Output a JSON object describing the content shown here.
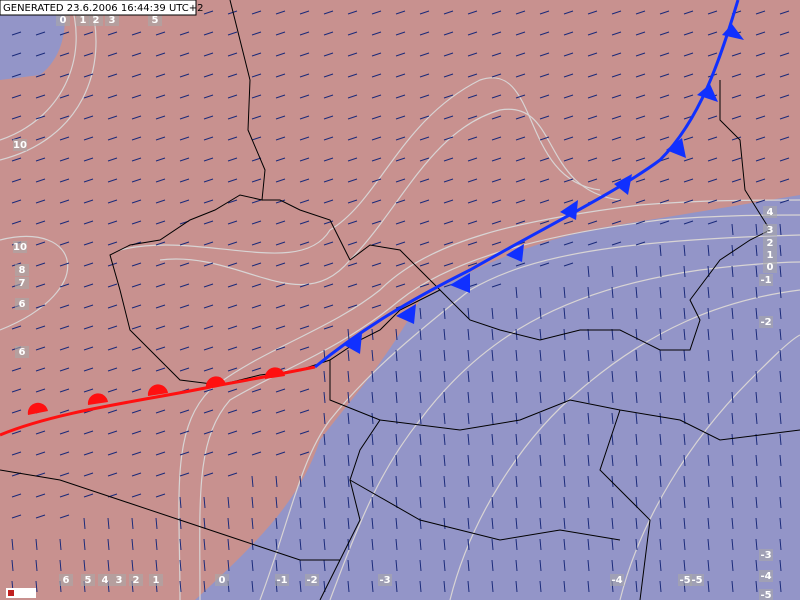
{
  "header": {
    "generated": "GENERATED 23.6.2006 16:44:39 UTC+2"
  },
  "contour_labels": [
    0,
    1,
    2,
    3,
    5,
    10,
    10,
    8,
    7,
    6,
    6,
    4,
    3,
    2,
    1,
    0,
    -1,
    -2,
    6,
    5,
    4,
    3,
    2,
    1,
    0,
    -1,
    -2,
    -3,
    -4,
    -5,
    -5,
    -3,
    -4,
    -5
  ]
}
